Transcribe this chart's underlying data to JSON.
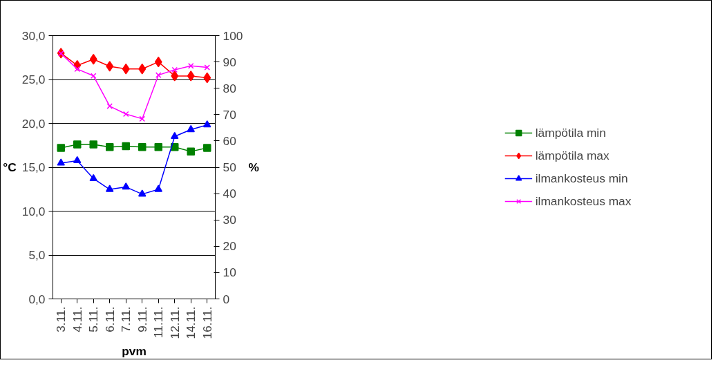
{
  "chart_data": {
    "type": "line",
    "ylabel": "°C",
    "y2label": "%",
    "xlabel": "pvm",
    "categories": [
      "3.11.",
      "4.11.",
      "5.11.",
      "6.11.",
      "7.11.",
      "9.11.",
      "11.11.",
      "12.11.",
      "14.11.",
      "16.11."
    ],
    "series": [
      {
        "name": "lämpötila min",
        "color": "#008000",
        "marker": "square",
        "values": [
          17.2,
          17.6,
          17.6,
          17.3,
          17.4,
          17.3,
          17.3,
          17.3,
          16.8,
          17.2
        ]
      },
      {
        "name": "lämpötila max",
        "color": "#ff0000",
        "marker": "diamond",
        "values": [
          28.0,
          26.6,
          27.3,
          26.5,
          26.2,
          26.2,
          27.0,
          25.4,
          25.4,
          25.2
        ]
      },
      {
        "name": "ilmankosteus min",
        "color": "#0000ff",
        "marker": "triangle",
        "axis": "y2",
        "values": [
          51.6,
          52.5,
          45.7,
          41.6,
          42.5,
          39.8,
          41.6,
          61.7,
          64.3,
          66.1
        ]
      },
      {
        "name": "ilmankosteus max",
        "color": "#ff00ff",
        "marker": "cross",
        "axis": "y2",
        "values": [
          93.2,
          87.3,
          84.7,
          73.2,
          70.2,
          68.4,
          85.0,
          87.0,
          88.5,
          87.9
        ]
      }
    ],
    "ylim": [
      0,
      30
    ],
    "yticks": [
      {
        "value": 0,
        "label": "0,0"
      },
      {
        "value": 5,
        "label": "5,0"
      },
      {
        "value": 10,
        "label": "10,0"
      },
      {
        "value": 15,
        "label": "15,0"
      },
      {
        "value": 20,
        "label": "20,0"
      },
      {
        "value": 25,
        "label": "25,0"
      },
      {
        "value": 30,
        "label": "30,0"
      }
    ],
    "y2lim": [
      0,
      100
    ],
    "y2ticks": [
      0,
      10,
      20,
      30,
      40,
      50,
      60,
      70,
      80,
      90,
      100
    ],
    "grid": "y",
    "legend": "right"
  }
}
